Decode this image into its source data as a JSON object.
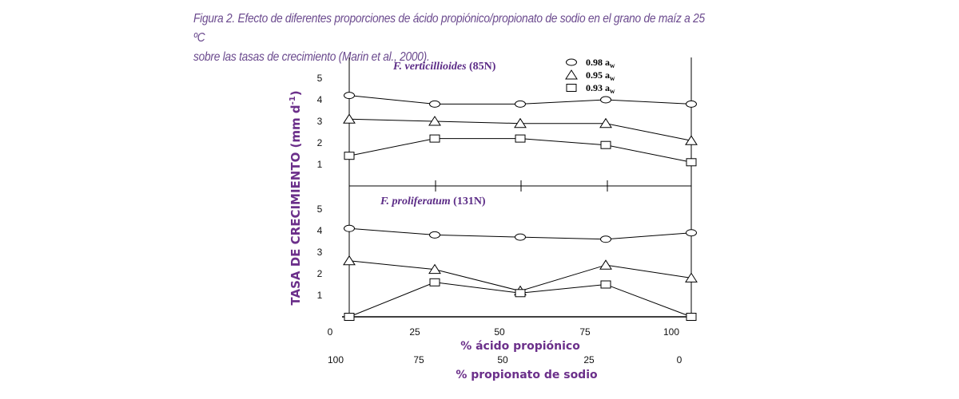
{
  "caption": {
    "line1": "Figura 2. Efecto de diferentes proporciones de ácido propiónico/propionato de sodio en el grano de maíz a 25 ºC",
    "line2": "sobre las tasas de crecimiento (Marin et al., 2000)."
  },
  "chart_data": {
    "type": "line",
    "ylabel": "TASA DE CRECIMIENTO (mm d",
    "ylabel_sup": "-1",
    "ylabel_end": ")",
    "xlabel_primary": "% ácido propiónico",
    "xlabel_secondary": "% propionato de sodio",
    "x_ticks_primary": [
      "0",
      "25",
      "50",
      "75",
      "100"
    ],
    "x_ticks_secondary": [
      "100",
      "75",
      "50",
      "25",
      "0"
    ],
    "y_ticks": [
      "1",
      "2",
      "3",
      "4",
      "5"
    ],
    "ylim": [
      0,
      5
    ],
    "xlim": [
      0,
      100
    ],
    "x": [
      0,
      25,
      50,
      75,
      100
    ],
    "legend": {
      "placement": "top-right",
      "entries": [
        {
          "label": "0.98 a",
          "sub": "w",
          "marker": "circle"
        },
        {
          "label": "0.95 a",
          "sub": "w",
          "marker": "triangle"
        },
        {
          "label": "0.93 a",
          "sub": "w",
          "marker": "square"
        }
      ]
    },
    "panels": [
      {
        "title_italic": "F. verticillioides",
        "title_plain": " (85N)",
        "series": [
          {
            "marker": "circle",
            "values": [
              4.2,
              3.8,
              3.8,
              4.0,
              3.8
            ]
          },
          {
            "marker": "triangle",
            "values": [
              3.1,
              3.0,
              2.9,
              2.9,
              2.1
            ]
          },
          {
            "marker": "square",
            "values": [
              1.4,
              2.2,
              2.2,
              1.9,
              1.1
            ]
          }
        ]
      },
      {
        "title_italic": "F. proliferatum",
        "title_plain": " (131N)",
        "series": [
          {
            "marker": "circle",
            "values": [
              4.1,
              3.8,
              3.7,
              3.6,
              3.9
            ]
          },
          {
            "marker": "triangle",
            "values": [
              2.6,
              2.2,
              1.2,
              2.4,
              1.8
            ]
          },
          {
            "marker": "square",
            "values": [
              0.0,
              1.6,
              1.1,
              1.5,
              0.0
            ]
          }
        ]
      }
    ]
  }
}
